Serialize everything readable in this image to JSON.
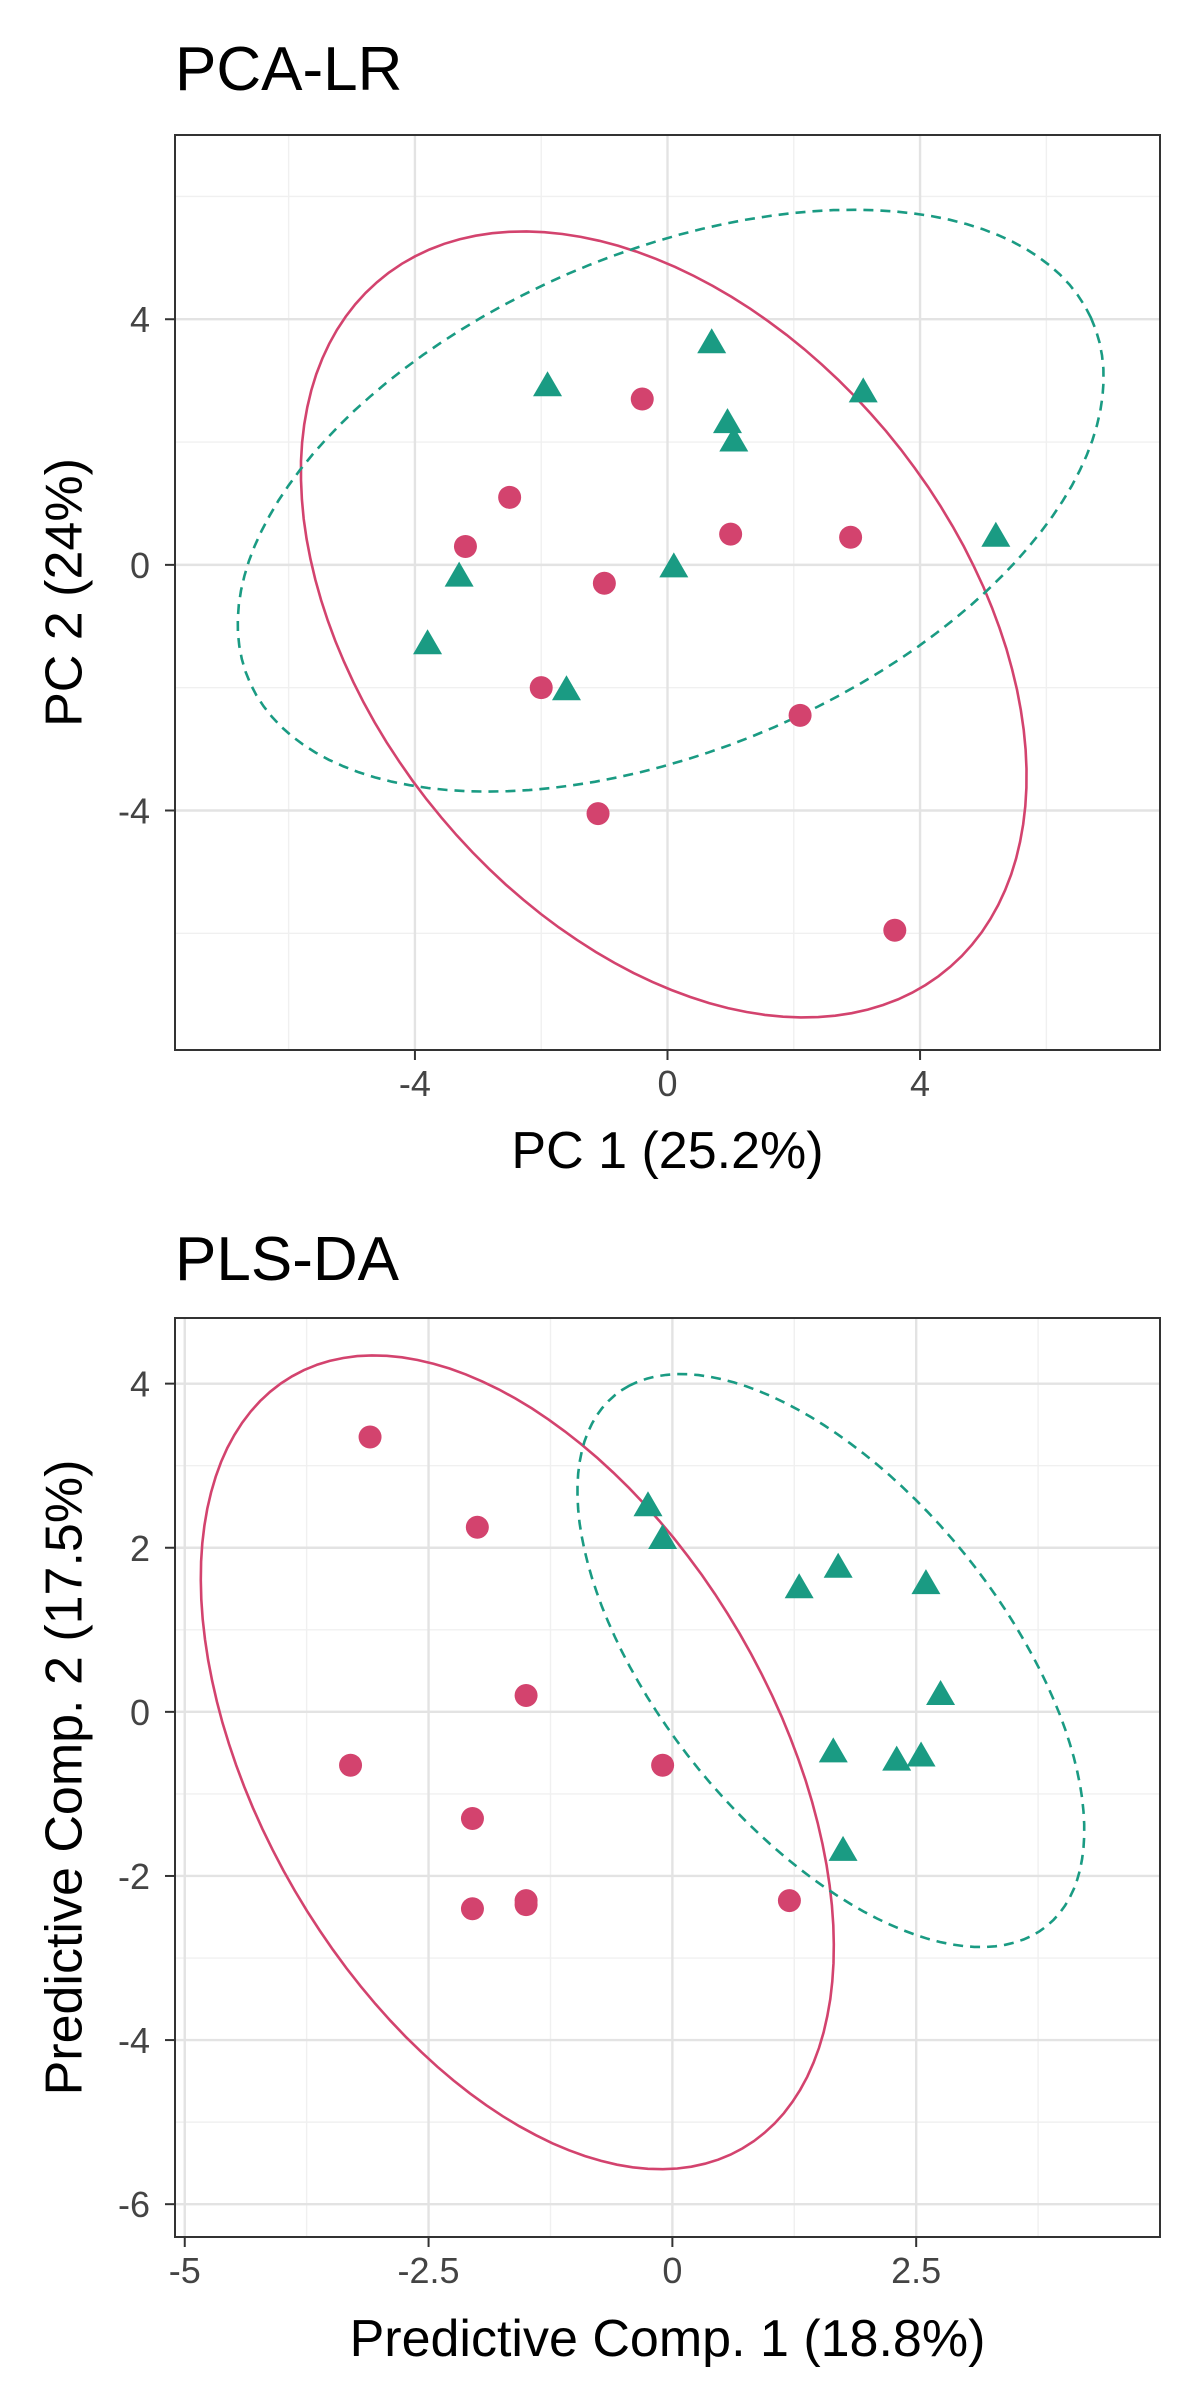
{
  "colors": {
    "groupA": "#D3436E",
    "groupB": "#1A9B83"
  },
  "chart_data": [
    {
      "type": "scatter",
      "title": "PCA-LR",
      "xlabel": "PC 1 (25.2%)",
      "ylabel": "PC 2 (24%)",
      "xlim": [
        -7.8,
        7.8
      ],
      "ylim": [
        -7.9,
        7.0
      ],
      "xticks": [
        -4,
        0,
        4
      ],
      "yticks": [
        -4,
        0,
        4
      ],
      "xminor": [
        -6,
        -2,
        2,
        6
      ],
      "yminor": [
        -6,
        -2,
        2,
        6
      ],
      "grid": true,
      "legend": "none",
      "series": [
        {
          "marker": "circle",
          "color": "#D3436E",
          "ellipse": "solid",
          "points": [
            [
              -0.4,
              2.7
            ],
            [
              -2.5,
              1.1
            ],
            [
              -3.2,
              0.3
            ],
            [
              1.0,
              0.5
            ],
            [
              2.9,
              0.45
            ],
            [
              -1.0,
              -0.3
            ],
            [
              -2.0,
              -2.0
            ],
            [
              2.1,
              -2.45
            ],
            [
              -1.1,
              -4.05
            ],
            [
              3.6,
              -5.95
            ]
          ]
        },
        {
          "marker": "triangle",
          "color": "#1A9B83",
          "ellipse": "dashed",
          "points": [
            [
              -1.9,
              2.9
            ],
            [
              0.7,
              3.6
            ],
            [
              0.95,
              2.3
            ],
            [
              1.05,
              2.0
            ],
            [
              3.1,
              2.8
            ],
            [
              5.2,
              0.45
            ],
            [
              -3.3,
              -0.2
            ],
            [
              0.1,
              -0.05
            ],
            [
              -3.8,
              -1.3
            ],
            [
              -1.6,
              -2.05
            ]
          ]
        }
      ]
    },
    {
      "type": "scatter",
      "title": "PLS-DA",
      "xlabel": "Predictive Comp. 1 (18.8%)",
      "ylabel": "Predictive Comp. 2 (17.5%)",
      "xlim": [
        -5.1,
        5.0
      ],
      "ylim": [
        -6.4,
        4.8
      ],
      "xticks": [
        -5.0,
        -2.5,
        0.0,
        2.5
      ],
      "yticks": [
        -6,
        -4,
        -2,
        0,
        2,
        4
      ],
      "xminor": [
        -3.75,
        -1.25,
        1.25,
        3.75
      ],
      "yminor": [
        -5,
        -3,
        -1,
        1,
        3
      ],
      "grid": true,
      "legend": "none",
      "series": [
        {
          "marker": "circle",
          "color": "#D3436E",
          "ellipse": "solid",
          "points": [
            [
              -3.1,
              3.35
            ],
            [
              -2.0,
              2.25
            ],
            [
              -1.5,
              0.2
            ],
            [
              -3.3,
              -0.65
            ],
            [
              -0.1,
              -0.65
            ],
            [
              -2.05,
              -1.3
            ],
            [
              -1.5,
              -2.3
            ],
            [
              -2.05,
              -2.4
            ],
            [
              -1.5,
              -2.35
            ],
            [
              1.2,
              -2.3
            ]
          ]
        },
        {
          "marker": "triangle",
          "color": "#1A9B83",
          "ellipse": "dashed",
          "points": [
            [
              -0.25,
              2.5
            ],
            [
              -0.1,
              2.1
            ],
            [
              1.3,
              1.5
            ],
            [
              1.7,
              1.75
            ],
            [
              2.6,
              1.55
            ],
            [
              2.75,
              0.2
            ],
            [
              1.65,
              -0.5
            ],
            [
              2.3,
              -0.6
            ],
            [
              2.55,
              -0.55
            ],
            [
              1.75,
              -1.7
            ]
          ]
        }
      ]
    }
  ]
}
